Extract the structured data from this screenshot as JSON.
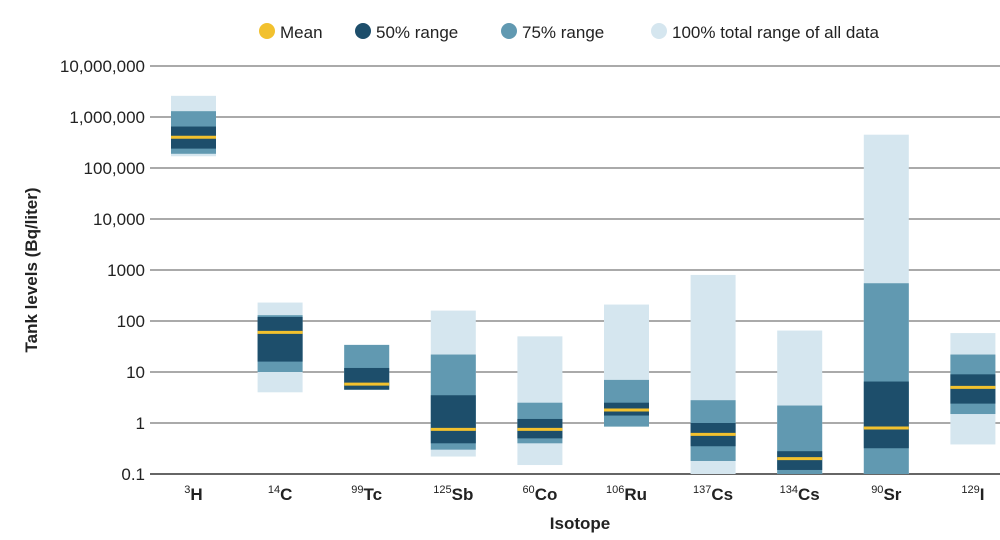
{
  "chart_data": {
    "type": "box",
    "ylabel": "Tank levels (Bq/liter)",
    "xlabel": "Isotope",
    "yscale": "log",
    "ylim": [
      0.1,
      10000000
    ],
    "yticks": [
      {
        "value": 10000000,
        "label": "10,000,000"
      },
      {
        "value": 1000000,
        "label": "1,000,000"
      },
      {
        "value": 100000,
        "label": "100,000"
      },
      {
        "value": 10000,
        "label": "10,000"
      },
      {
        "value": 1000,
        "label": "1000"
      },
      {
        "value": 100,
        "label": "100"
      },
      {
        "value": 10,
        "label": "10"
      },
      {
        "value": 1,
        "label": "1"
      },
      {
        "value": 0.1,
        "label": "0.1"
      }
    ],
    "grid": "horizontal",
    "legend": {
      "position": "top",
      "items": [
        {
          "key": "mean",
          "label": "Mean",
          "color": "#f2c12e"
        },
        {
          "key": "r50",
          "label": "50% range",
          "color": "#1d4e6b"
        },
        {
          "key": "r75",
          "label": "75% range",
          "color": "#6199b1"
        },
        {
          "key": "r100",
          "label": "100% total range of all data",
          "color": "#d5e6ef"
        }
      ]
    },
    "categories": [
      {
        "mass": "3",
        "symbol": "H",
        "r100": [
          170000,
          2600000
        ],
        "r75": [
          190000,
          1300000
        ],
        "r50": [
          240000,
          650000
        ],
        "mean": 400000
      },
      {
        "mass": "14",
        "symbol": "C",
        "r100": [
          4,
          230
        ],
        "r75": [
          10,
          130
        ],
        "r50": [
          16,
          120
        ],
        "mean": 60
      },
      {
        "mass": "99",
        "symbol": "Tc",
        "r100": [
          4.5,
          34
        ],
        "r75": [
          4.5,
          34
        ],
        "r50": [
          4.5,
          12
        ],
        "mean": 5.8
      },
      {
        "mass": "125",
        "symbol": "Sb",
        "r100": [
          0.22,
          160
        ],
        "r75": [
          0.3,
          22
        ],
        "r50": [
          0.4,
          3.5
        ],
        "mean": 0.75
      },
      {
        "mass": "60",
        "symbol": "Co",
        "r100": [
          0.15,
          50
        ],
        "r75": [
          0.4,
          2.5
        ],
        "r50": [
          0.5,
          1.2
        ],
        "mean": 0.75
      },
      {
        "mass": "106",
        "symbol": "Ru",
        "r100": [
          0.85,
          210
        ],
        "r75": [
          0.85,
          7
        ],
        "r50": [
          1.4,
          2.5
        ],
        "mean": 1.8
      },
      {
        "mass": "137",
        "symbol": "Cs",
        "r100": [
          0.1,
          800
        ],
        "r75": [
          0.18,
          2.8
        ],
        "r50": [
          0.35,
          1
        ],
        "mean": 0.6
      },
      {
        "mass": "134",
        "symbol": "Cs",
        "r100": [
          0.1,
          65
        ],
        "r75": [
          0.1,
          2.2
        ],
        "r50": [
          0.12,
          0.28
        ],
        "mean": 0.2
      },
      {
        "mass": "90",
        "symbol": "Sr",
        "r100": [
          0.1,
          450000
        ],
        "r75": [
          0.1,
          550
        ],
        "r50": [
          0.32,
          6.5
        ],
        "mean": 0.8
      },
      {
        "mass": "129",
        "symbol": "I",
        "r100": [
          0.38,
          58
        ],
        "r75": [
          1.5,
          22
        ],
        "r50": [
          2.4,
          9
        ],
        "mean": 5
      }
    ]
  }
}
